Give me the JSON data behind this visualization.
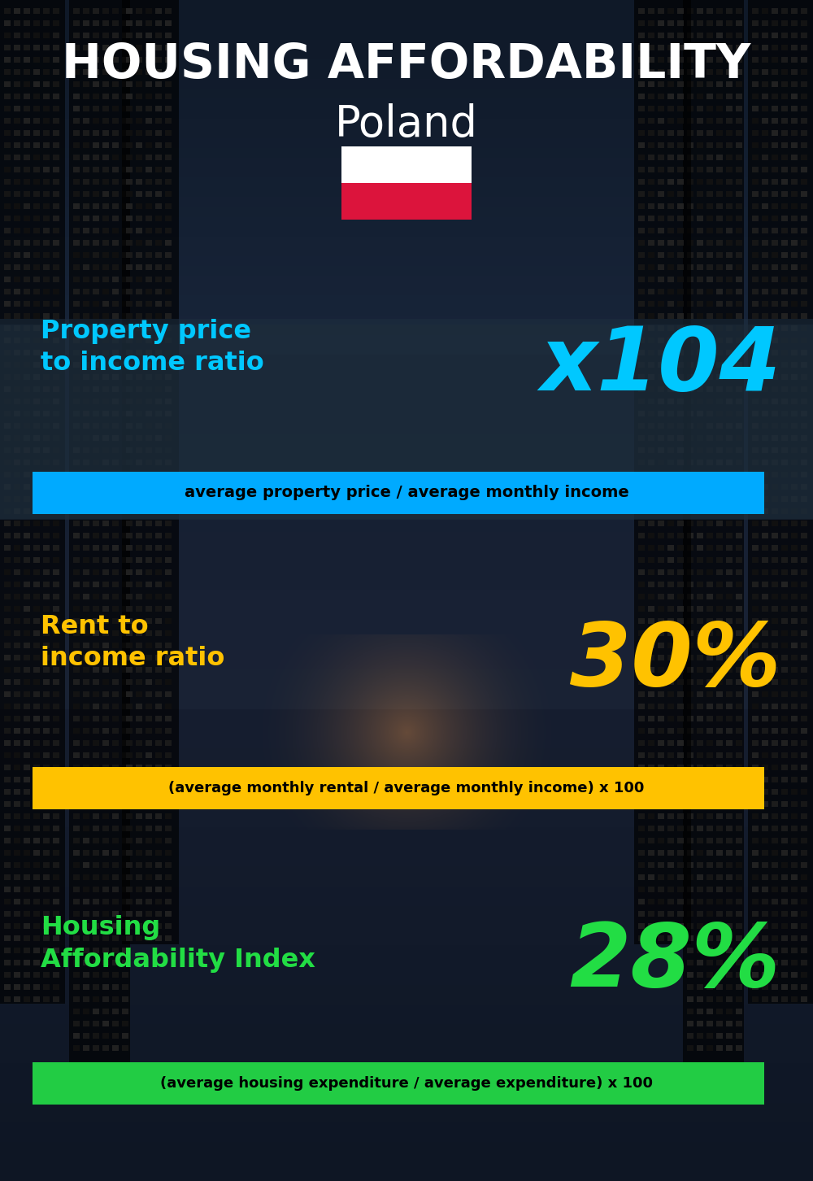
{
  "title_line1": "HOUSING AFFORDABILITY",
  "title_line2": "Poland",
  "title_color": "#ffffff",
  "bg_color": "#0d1a24",
  "flag_white": "#ffffff",
  "flag_red": "#dc143c",
  "section1_label": "Property price\nto income ratio",
  "section1_value": "x104",
  "section1_label_color": "#00c8ff",
  "section1_value_color": "#00c8ff",
  "section1_banner_text": "average property price / average monthly income",
  "section1_banner_bg": "#00aaff",
  "section1_banner_text_color": "#000000",
  "section2_label": "Rent to\nincome ratio",
  "section2_value": "30%",
  "section2_label_color": "#ffc200",
  "section2_value_color": "#ffc200",
  "section2_banner_text": "(average monthly rental / average monthly income) x 100",
  "section2_banner_bg": "#ffc200",
  "section2_banner_text_color": "#000000",
  "section3_label": "Housing\nAffordability Index",
  "section3_value": "28%",
  "section3_label_color": "#22dd44",
  "section3_value_color": "#22dd44",
  "section3_banner_text": "(average housing expenditure / average expenditure) x 100",
  "section3_banner_bg": "#22cc44",
  "section3_banner_text_color": "#000000",
  "fig_width": 10.0,
  "fig_height": 14.52,
  "dpi": 100
}
